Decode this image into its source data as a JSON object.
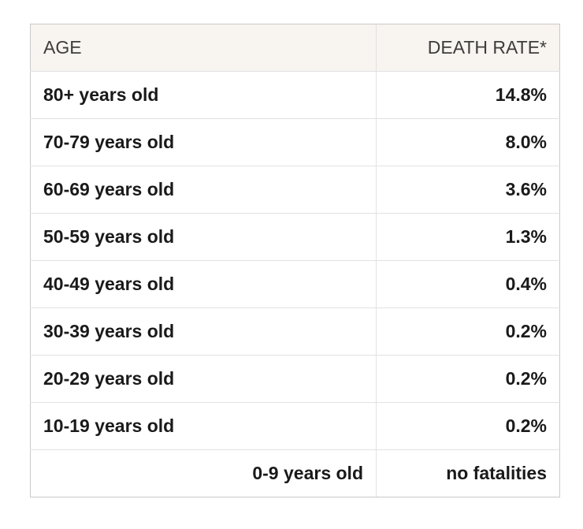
{
  "page": {
    "background": "#ffffff"
  },
  "colors": {
    "header_bg": "#f8f4ef",
    "outer_border": "#c9c9c9",
    "inner_border": "#e2e2e2",
    "header_text": "#3d3d3d",
    "data_text": "#1a1a1a"
  },
  "chart_data": {
    "type": "table",
    "columns": [
      "AGE",
      "DEATH RATE*"
    ],
    "rows": [
      [
        "80+ years old",
        "14.8%"
      ],
      [
        "70-79 years old",
        "8.0%"
      ],
      [
        "60-69 years old",
        "3.6%"
      ],
      [
        "50-59 years old",
        "1.3%"
      ],
      [
        "40-49 years old",
        "0.4%"
      ],
      [
        "30-39 years old",
        "0.2%"
      ],
      [
        "20-29 years old",
        "0.2%"
      ],
      [
        "10-19 years old",
        "0.2%"
      ],
      [
        "0-9 years old",
        "no fatalities"
      ]
    ]
  }
}
